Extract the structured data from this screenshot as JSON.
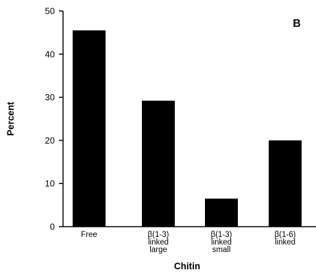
{
  "chart_data": {
    "type": "bar",
    "panel_label": "B",
    "categories": [
      [
        "Free"
      ],
      [
        "β(1-3)",
        "linked",
        "large"
      ],
      [
        "β(1-3)",
        "linked",
        "small"
      ],
      [
        "β(1-6)",
        "linked"
      ]
    ],
    "values": [
      45.5,
      29.2,
      6.5,
      20
    ],
    "xlabel": "Chitin",
    "ylabel": "Percent",
    "ylim": [
      0,
      50
    ],
    "yticks": [
      0,
      10,
      20,
      30,
      40,
      50
    ],
    "bar_color": "#000000",
    "grid": false
  }
}
